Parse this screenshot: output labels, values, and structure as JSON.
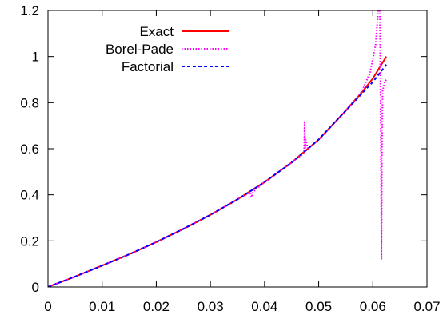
{
  "chart_data": {
    "type": "line",
    "title": "",
    "xlabel": "",
    "ylabel": "",
    "xlim": [
      0,
      0.07
    ],
    "ylim": [
      0,
      1.2
    ],
    "x_ticks": [
      0,
      0.01,
      0.02,
      0.03,
      0.04,
      0.05,
      0.06,
      0.07
    ],
    "x_tick_labels": [
      "0",
      "0.01",
      "0.02",
      "0.03",
      "0.04",
      "0.05",
      "0.06",
      "0.07"
    ],
    "y_ticks": [
      0,
      0.2,
      0.4,
      0.6,
      0.8,
      1.0,
      1.2
    ],
    "y_tick_labels": [
      "0",
      "0.2",
      "0.4",
      "0.6",
      "0.8",
      "1",
      "1.2"
    ],
    "grid": false,
    "legend_position": "top-left",
    "series": [
      {
        "name": "Exact",
        "color": "#ff0000",
        "style": "solid",
        "x": [
          0,
          0.005,
          0.01,
          0.015,
          0.02,
          0.025,
          0.03,
          0.035,
          0.04,
          0.045,
          0.05,
          0.055,
          0.058,
          0.06,
          0.0625
        ],
        "y": [
          0,
          0.045,
          0.093,
          0.142,
          0.195,
          0.252,
          0.313,
          0.38,
          0.455,
          0.54,
          0.64,
          0.765,
          0.845,
          0.905,
          1.0
        ]
      },
      {
        "name": "Borel-Pade",
        "color": "#ff00ff",
        "style": "dotted",
        "x": [
          0,
          0.005,
          0.01,
          0.015,
          0.02,
          0.025,
          0.03,
          0.035,
          0.0373,
          0.0376,
          0.0379,
          0.04,
          0.045,
          0.0473,
          0.0474,
          0.0475,
          0.0476,
          0.048,
          0.05,
          0.055,
          0.058,
          0.0595,
          0.0605,
          0.061,
          0.0613,
          0.0615,
          0.0616,
          0.0617,
          0.0618,
          0.0622,
          0.0625
        ],
        "y": [
          0,
          0.045,
          0.093,
          0.142,
          0.195,
          0.252,
          0.313,
          0.38,
          0.41,
          0.39,
          0.413,
          0.455,
          0.54,
          0.58,
          0.72,
          0.6,
          0.64,
          0.6,
          0.64,
          0.765,
          0.85,
          0.93,
          1.05,
          1.2,
          1.2,
          0.6,
          0.12,
          0.6,
          0.85,
          0.89,
          0.9
        ]
      },
      {
        "name": "Factorial",
        "color": "#0000ff",
        "style": "dashed",
        "x": [
          0,
          0.005,
          0.01,
          0.015,
          0.02,
          0.025,
          0.03,
          0.035,
          0.04,
          0.045,
          0.05,
          0.055,
          0.058,
          0.06,
          0.0625
        ],
        "y": [
          0,
          0.045,
          0.093,
          0.142,
          0.195,
          0.252,
          0.313,
          0.38,
          0.455,
          0.54,
          0.64,
          0.765,
          0.84,
          0.89,
          0.965
        ]
      }
    ]
  }
}
